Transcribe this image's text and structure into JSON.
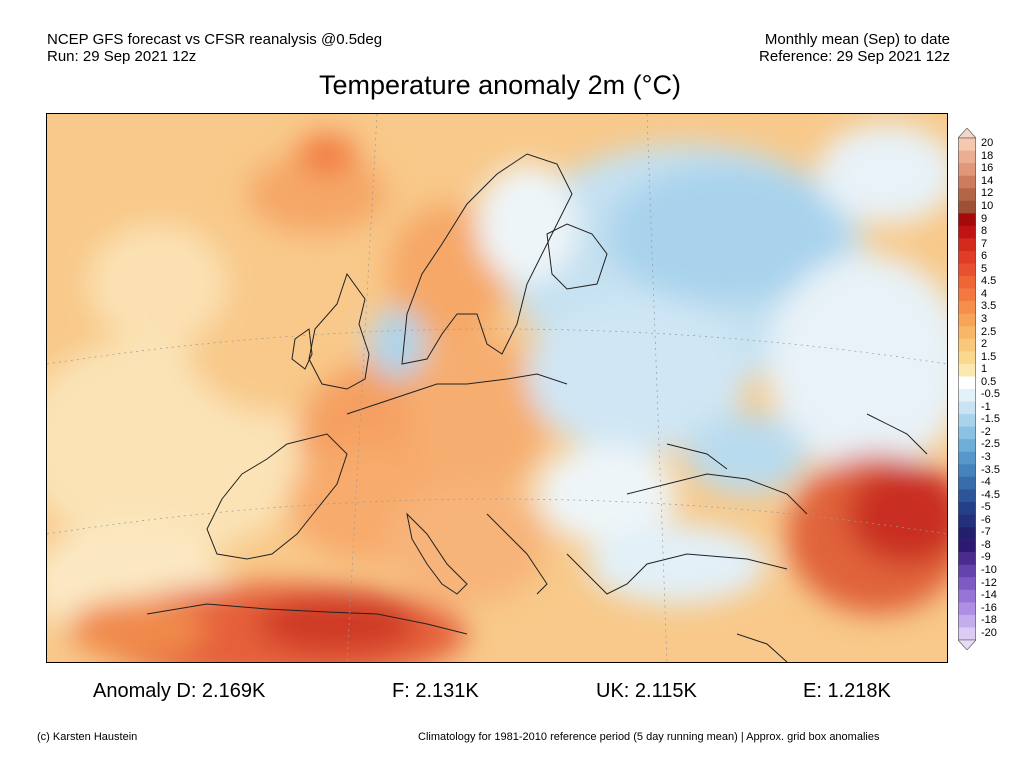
{
  "header": {
    "model_line": "NCEP GFS forecast vs CFSR reanalysis @0.5deg",
    "run_line": "Run: 29 Sep 2021 12z",
    "period_line": "Monthly mean (Sep) to date",
    "reference_line": "Reference: 29 Sep 2021 12z"
  },
  "title": "Temperature anomaly 2m (°C)",
  "colorbar": {
    "levels": [
      "20",
      "18",
      "16",
      "14",
      "12",
      "10",
      "9",
      "8",
      "7",
      "6",
      "5",
      "4.5",
      "4",
      "3.5",
      "3",
      "2.5",
      "2",
      "1.5",
      "1",
      "0.5",
      "-0.5",
      "-1",
      "-1.5",
      "-2",
      "-2.5",
      "-3",
      "-3.5",
      "-4",
      "-4.5",
      "-5",
      "-6",
      "-7",
      "-8",
      "-9",
      "-10",
      "-12",
      "-14",
      "-16",
      "-18",
      "-20"
    ],
    "colors": [
      "#f5c8b0",
      "#ecae92",
      "#e0977a",
      "#cc7d5e",
      "#b56547",
      "#9e4f37",
      "#a40a0a",
      "#c01414",
      "#d42a1e",
      "#e03c28",
      "#e8512f",
      "#ee6636",
      "#f27a40",
      "#f58f4b",
      "#f7a358",
      "#f8b669",
      "#f9c87c",
      "#fad98f",
      "#fbe8ae",
      "#ffffff",
      "#e3f1f9",
      "#c9e3f3",
      "#a9d3ec",
      "#8bc2e3",
      "#6daed8",
      "#5698c9",
      "#4682bb",
      "#386cab",
      "#2c559a",
      "#24408a",
      "#23307c",
      "#241f6c",
      "#2c1a72",
      "#4a2c8f",
      "#6543ac",
      "#7e5bc3",
      "#9675d6",
      "#ad90e3",
      "#c4adeb",
      "#dccbf3"
    ],
    "top_arrow_color": "#f5d6c6",
    "bottom_arrow_color": "#e6dcf8"
  },
  "stats": {
    "domain": "Anomaly D: 2.169K",
    "france": "F: 2.131K",
    "uk": "UK: 2.115K",
    "england": "E: 1.218K"
  },
  "footer": {
    "credit": "(c) Karsten Haustein",
    "note": "Climatology for 1981-2010 reference period (5 day running mean) | Approx. grid box anomalies"
  }
}
